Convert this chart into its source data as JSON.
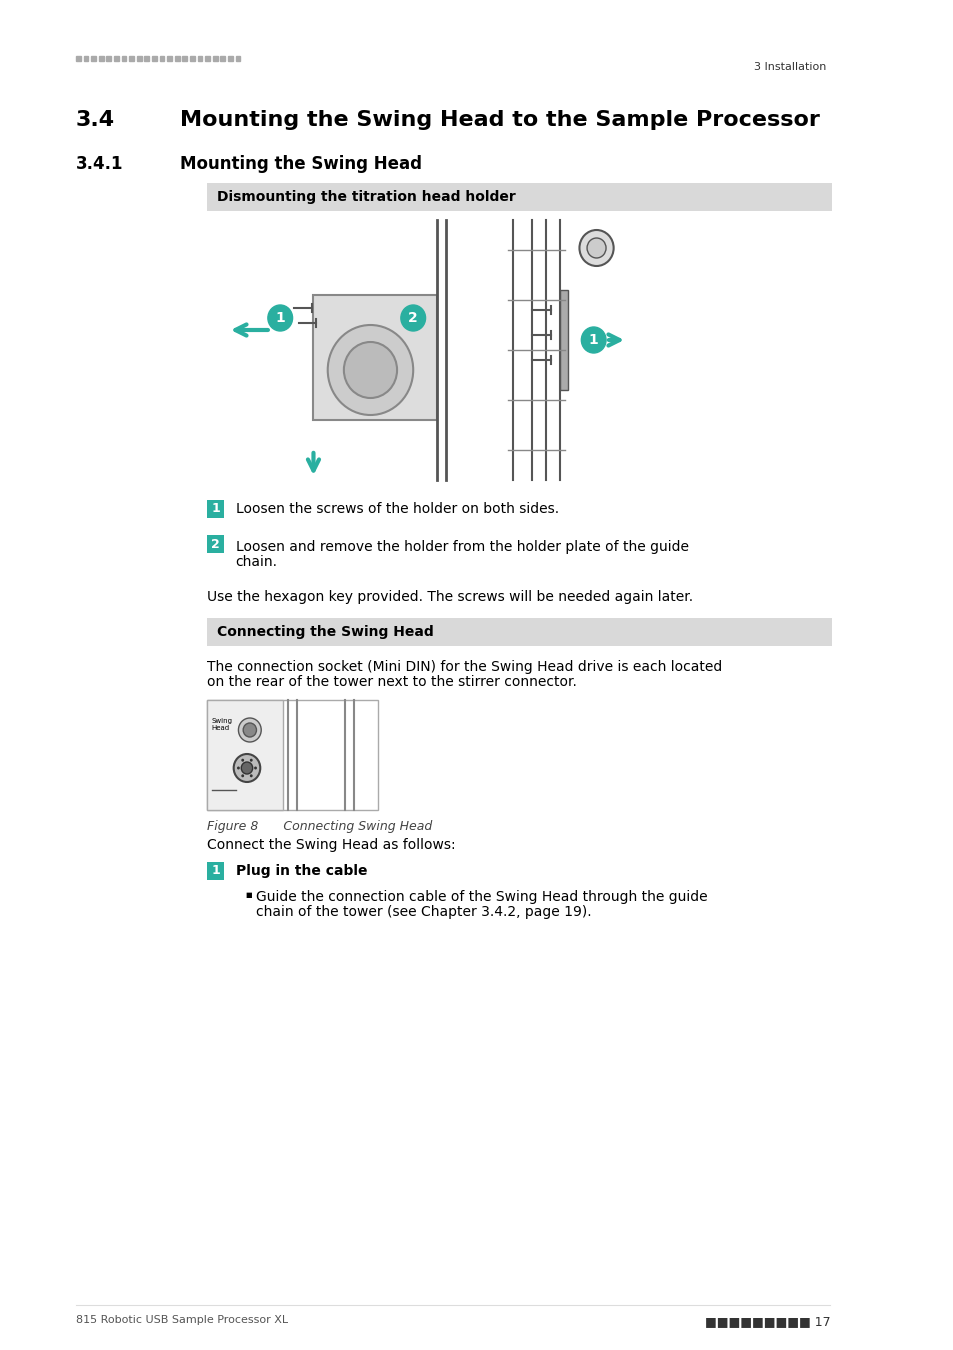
{
  "page_bg": "#ffffff",
  "header_dot_color": "#aaaaaa",
  "header_right_text": "3 Installation",
  "section_title": "3.4  Mounting the Swing Head to the Sample Processor",
  "subsection_title": "3.4.1  Mounting the Swing Head",
  "box1_title": "Dismounting the titration head holder",
  "box1_bg": "#d9d9d9",
  "box2_title": "Connecting the Swing Head",
  "box2_bg": "#d9d9d9",
  "step1_label": "1",
  "step1_text": "Loosen the screws of the holder on both sides.",
  "step2_label": "2",
  "step2_text": "Loosen and remove the holder from the holder plate of the guide\nchain.",
  "hex_note": "Use the hexagon key provided. The screws will be needed again later.",
  "connect_desc": "The connection socket (Mini DIN) for the Swing Head drive is each located\non the rear of the tower next to the stirrer connector.",
  "figure_caption": "Figure 8  Connecting Swing Head",
  "connect_steps_intro": "Connect the Swing Head as follows:",
  "plug_step_label": "1",
  "plug_step_title": "Plug in the cable",
  "plug_step_bullet": "Guide the connection cable of the Swing Head through the guide\nchain of the tower (see Chapter 3.4.2, page 19).",
  "footer_left": "815 Robotic USB Sample Processor XL",
  "footer_dots": "■■■■■■■■■ 17",
  "teal_color": "#2aafa0",
  "accent_color": "#2aafa0",
  "text_color": "#000000",
  "gray_color": "#808080"
}
